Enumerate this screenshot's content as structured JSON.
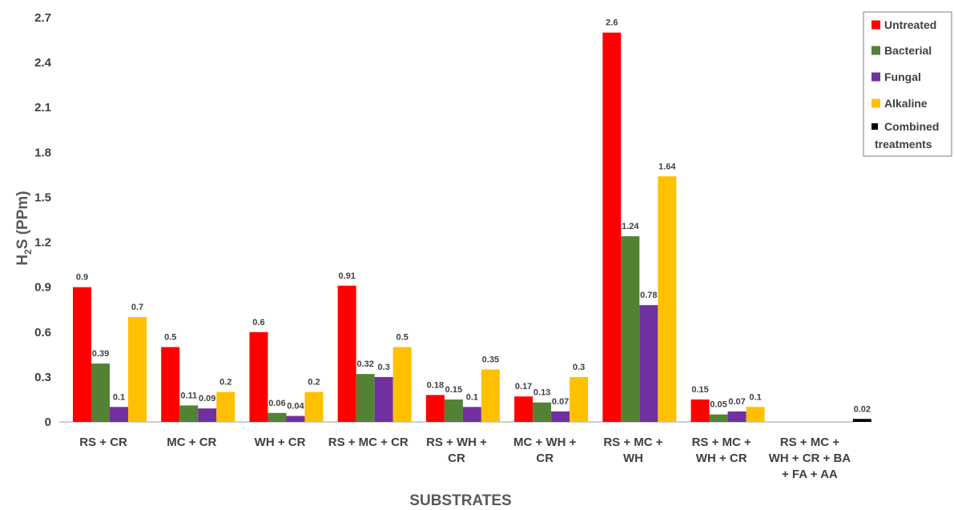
{
  "chart_data": {
    "type": "bar",
    "xlabel": "SUBSTRATES",
    "ylabel": "H2S (PPm)",
    "ylim": [
      0,
      2.7
    ],
    "yticks": [
      "0",
      "0.3",
      "0.6",
      "0.9",
      "1.2",
      "1.5",
      "1.8",
      "2.1",
      "2.4",
      "2.7"
    ],
    "ytick_values": [
      0,
      0.3,
      0.6,
      0.9,
      1.2,
      1.5,
      1.8,
      2.1,
      2.4,
      2.7
    ],
    "grid": false,
    "legend_position": "top-right",
    "categories": [
      [
        "RS + CR"
      ],
      [
        "MC + CR"
      ],
      [
        "WH + CR"
      ],
      [
        "RS + MC + CR"
      ],
      [
        "RS +  WH +",
        "CR"
      ],
      [
        "MC + WH +",
        "CR"
      ],
      [
        "RS + MC +",
        "WH"
      ],
      [
        "RS + MC +",
        "WH + CR"
      ],
      [
        "RS + MC +",
        "WH + CR + BA",
        "+ FA + AA"
      ]
    ],
    "series": [
      {
        "name": "Untreated",
        "color": "#ff0000",
        "values": [
          0.9,
          0.5,
          0.6,
          0.91,
          0.18,
          0.17,
          2.6,
          0.15,
          null
        ],
        "labels": [
          "0.9",
          "0.5",
          "0.6",
          "0.91",
          "0.18",
          "0.17",
          "2.6",
          "0.15",
          ""
        ]
      },
      {
        "name": "Bacterial",
        "color": "#548235",
        "values": [
          0.39,
          0.11,
          0.06,
          0.32,
          0.15,
          0.13,
          1.24,
          0.05,
          null
        ],
        "labels": [
          "0.39",
          "0.11",
          "0.06",
          "0.32",
          "0.15",
          "0.13",
          "1.24",
          "0.05",
          ""
        ]
      },
      {
        "name": "Fungal",
        "color": "#7030a0",
        "values": [
          0.1,
          0.09,
          0.04,
          0.3,
          0.1,
          0.07,
          0.78,
          0.07,
          null
        ],
        "labels": [
          "0.1",
          "0.09",
          "0.04",
          "0.3",
          "0.1",
          "0.07",
          "0.78",
          "0.07",
          ""
        ]
      },
      {
        "name": "Alkaline",
        "color": "#ffc000",
        "values": [
          0.7,
          0.2,
          0.2,
          0.5,
          0.35,
          0.3,
          1.64,
          0.1,
          null
        ],
        "labels": [
          "0.7",
          "0.2",
          "0.2",
          "0.5",
          "0.35",
          "0.3",
          "1.64",
          "0.1",
          ""
        ]
      },
      {
        "name": "Combined treatments",
        "legend_lines": [
          "Combined",
          "treatments"
        ],
        "color": "#000000",
        "values": [
          null,
          null,
          null,
          null,
          null,
          null,
          null,
          null,
          0.02
        ],
        "labels": [
          "",
          "",
          "",
          "",
          "",
          "",
          "",
          "",
          "0.02"
        ]
      }
    ]
  }
}
